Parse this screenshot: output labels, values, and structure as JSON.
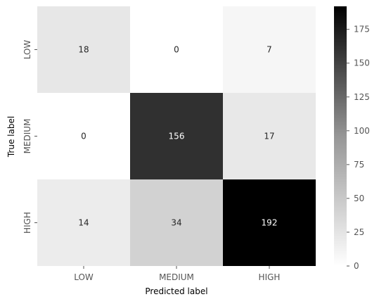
{
  "chart_data": {
    "type": "heatmap",
    "title": "",
    "xlabel": "Predicted label",
    "ylabel": "True label",
    "x_categories": [
      "LOW",
      "MEDIUM",
      "HIGH"
    ],
    "y_categories": [
      "LOW",
      "MEDIUM",
      "HIGH"
    ],
    "values": [
      [
        18,
        0,
        7
      ],
      [
        0,
        156,
        17
      ],
      [
        14,
        34,
        192
      ]
    ],
    "colorbar": {
      "min": 0,
      "max": 192,
      "ticks": [
        0,
        25,
        50,
        75,
        100,
        125,
        150,
        175
      ],
      "colormap": "Greys",
      "low_color": "#ffffff",
      "high_color": "#000000"
    },
    "legend_placement": "right",
    "grid": false
  }
}
